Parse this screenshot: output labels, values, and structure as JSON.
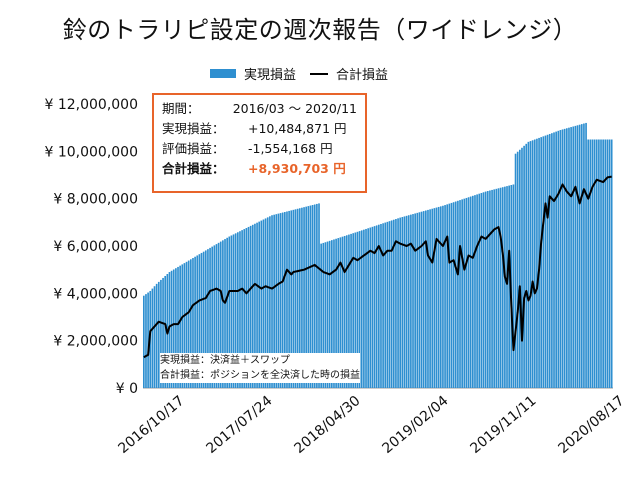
{
  "title": "鈴のトラリピ設定の週次報告（ワイドレンジ）",
  "legend": {
    "realized": "実現損益",
    "total": "合計損益"
  },
  "colors": {
    "bar": "#2e8fd0",
    "line": "#000000",
    "accent": "#e8642a"
  },
  "infobox": {
    "period_label": "期間：",
    "period_value": "2016/03 ～ 2020/11",
    "realized_label": "実現損益：",
    "realized_value": "+10,484,871 円",
    "unrealized_label": "評価損益：",
    "unrealized_value": "-1,554,168 円",
    "total_label": "合計損益：",
    "total_value": "+8,930,703 円"
  },
  "notes": {
    "line1": "実現損益：決済益＋スワップ",
    "line2": "合計損益：ポジションを全決済した時の損益"
  },
  "chart_data": {
    "type": "bar",
    "title": "鈴のトラリピ設定の週次報告（ワイドレンジ）",
    "ylim": [
      0,
      12000000
    ],
    "yticks": [
      "¥ 0",
      "¥ 2,000,000",
      "¥ 4,000,000",
      "¥ 6,000,000",
      "¥ 8,000,000",
      "¥ 10,000,000",
      "¥ 12,000,000"
    ],
    "xticks": [
      "2016/10/17",
      "2017/07/24",
      "2018/04/30",
      "2019/02/04",
      "2019/11/11",
      "2020/08/17"
    ],
    "n_weeks": 220,
    "series": [
      {
        "name": "実現損益",
        "type": "bar",
        "keypoints": [
          [
            0,
            3900000
          ],
          [
            3,
            4100000
          ],
          [
            6,
            4400000
          ],
          [
            12,
            4900000
          ],
          [
            25,
            5600000
          ],
          [
            40,
            6400000
          ],
          [
            60,
            7300000
          ],
          [
            82,
            7800000
          ],
          [
            83,
            6100000
          ],
          [
            100,
            6600000
          ],
          [
            120,
            7200000
          ],
          [
            140,
            7700000
          ],
          [
            160,
            8300000
          ],
          [
            173,
            8600000
          ],
          [
            174,
            9900000
          ],
          [
            180,
            10400000
          ],
          [
            195,
            10900000
          ],
          [
            207,
            11200000
          ],
          [
            208,
            10500000
          ],
          [
            219,
            10500000
          ]
        ]
      },
      {
        "name": "合計損益",
        "type": "line",
        "keypoints": [
          [
            0,
            1300000
          ],
          [
            2,
            1400000
          ],
          [
            3,
            2400000
          ],
          [
            5,
            2600000
          ],
          [
            7,
            2800000
          ],
          [
            10,
            2700000
          ],
          [
            11,
            2300000
          ],
          [
            12,
            2600000
          ],
          [
            14,
            2700000
          ],
          [
            16,
            2700000
          ],
          [
            18,
            3000000
          ],
          [
            21,
            3200000
          ],
          [
            23,
            3500000
          ],
          [
            26,
            3700000
          ],
          [
            29,
            3800000
          ],
          [
            31,
            4100000
          ],
          [
            34,
            4200000
          ],
          [
            36,
            4100000
          ],
          [
            37,
            3700000
          ],
          [
            38,
            3600000
          ],
          [
            40,
            4100000
          ],
          [
            44,
            4100000
          ],
          [
            46,
            4200000
          ],
          [
            48,
            4000000
          ],
          [
            50,
            4200000
          ],
          [
            52,
            4400000
          ],
          [
            55,
            4200000
          ],
          [
            57,
            4300000
          ],
          [
            60,
            4200000
          ],
          [
            63,
            4400000
          ],
          [
            65,
            4500000
          ],
          [
            67,
            5000000
          ],
          [
            69,
            4800000
          ],
          [
            70,
            4900000
          ],
          [
            75,
            5000000
          ],
          [
            80,
            5200000
          ],
          [
            84,
            4900000
          ],
          [
            87,
            4800000
          ],
          [
            90,
            5000000
          ],
          [
            92,
            5300000
          ],
          [
            94,
            4900000
          ],
          [
            96,
            5200000
          ],
          [
            98,
            5500000
          ],
          [
            100,
            5400000
          ],
          [
            103,
            5600000
          ],
          [
            106,
            5800000
          ],
          [
            108,
            5700000
          ],
          [
            110,
            6000000
          ],
          [
            112,
            5600000
          ],
          [
            114,
            5800000
          ],
          [
            116,
            5800000
          ],
          [
            118,
            6200000
          ],
          [
            120,
            6100000
          ],
          [
            123,
            6000000
          ],
          [
            125,
            6100000
          ],
          [
            127,
            5800000
          ],
          [
            130,
            6000000
          ],
          [
            132,
            6200000
          ],
          [
            133,
            5600000
          ],
          [
            135,
            5300000
          ],
          [
            137,
            6300000
          ],
          [
            140,
            6000000
          ],
          [
            142,
            6400000
          ],
          [
            143,
            5300000
          ],
          [
            145,
            5400000
          ],
          [
            147,
            4800000
          ],
          [
            148,
            6000000
          ],
          [
            150,
            5000000
          ],
          [
            152,
            5600000
          ],
          [
            154,
            5500000
          ],
          [
            156,
            6000000
          ],
          [
            158,
            6400000
          ],
          [
            160,
            6300000
          ],
          [
            162,
            6500000
          ],
          [
            164,
            6700000
          ],
          [
            166,
            6800000
          ],
          [
            167,
            6400000
          ],
          [
            168,
            5700000
          ],
          [
            169,
            4700000
          ],
          [
            170,
            4400000
          ],
          [
            171,
            5800000
          ],
          [
            172,
            3500000
          ],
          [
            173,
            1600000
          ],
          [
            174,
            2400000
          ],
          [
            175,
            3200000
          ],
          [
            176,
            4300000
          ],
          [
            177,
            2000000
          ],
          [
            178,
            3800000
          ],
          [
            179,
            4100000
          ],
          [
            180,
            3700000
          ],
          [
            181,
            3900000
          ],
          [
            182,
            4500000
          ],
          [
            183,
            4000000
          ],
          [
            184,
            4200000
          ],
          [
            185,
            5000000
          ],
          [
            186,
            6200000
          ],
          [
            187,
            7000000
          ],
          [
            188,
            7800000
          ],
          [
            189,
            7200000
          ],
          [
            190,
            8100000
          ],
          [
            192,
            7900000
          ],
          [
            194,
            8200000
          ],
          [
            196,
            8600000
          ],
          [
            198,
            8300000
          ],
          [
            200,
            8100000
          ],
          [
            202,
            8500000
          ],
          [
            204,
            7800000
          ],
          [
            206,
            8400000
          ],
          [
            208,
            8000000
          ],
          [
            210,
            8500000
          ],
          [
            212,
            8800000
          ],
          [
            215,
            8700000
          ],
          [
            217,
            8900000
          ],
          [
            219,
            8930703
          ]
        ]
      }
    ]
  }
}
